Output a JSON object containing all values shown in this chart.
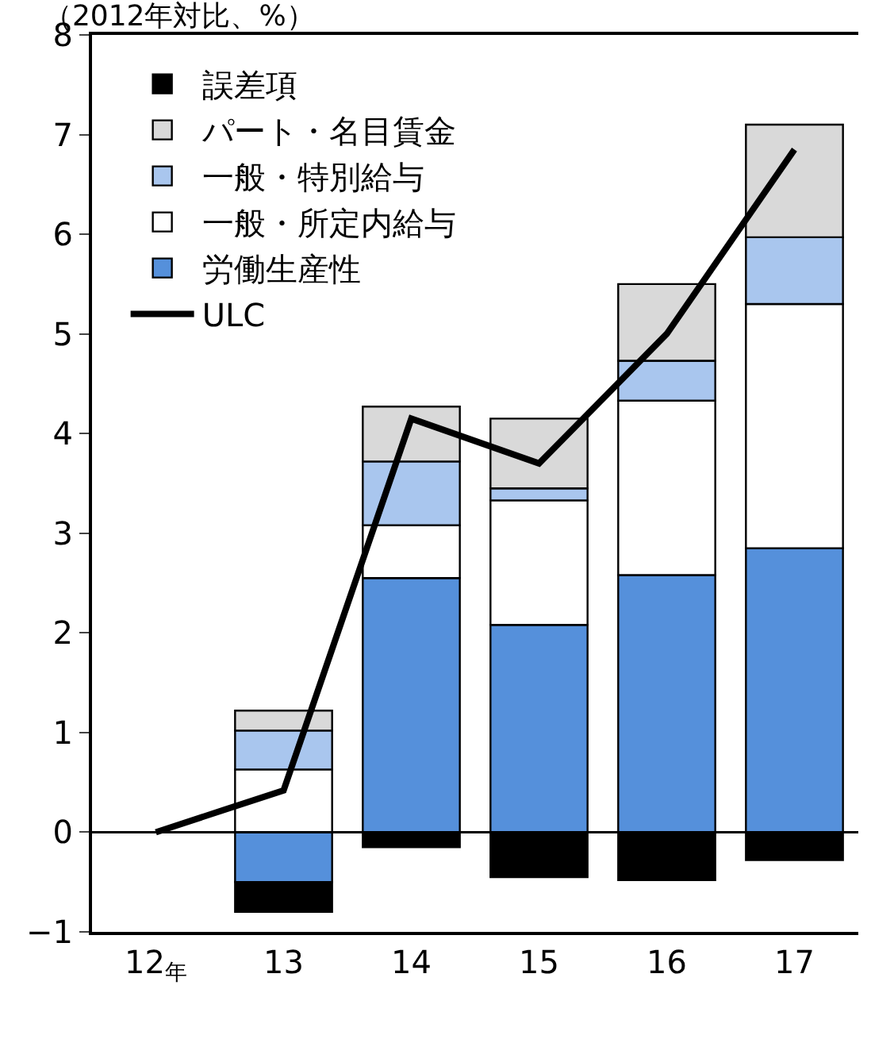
{
  "chart_data": {
    "type": "bar",
    "stacked": true,
    "title": "（2012年対比、%）",
    "categories": [
      "12$_{年}$",
      "13",
      "14",
      "15",
      "16",
      "17"
    ],
    "series": [
      {
        "name": "労働生産性",
        "color": "#5590db",
        "values": [
          null,
          -0.5,
          2.55,
          2.08,
          2.58,
          2.85
        ]
      },
      {
        "name": "一般・所定内給与",
        "color": "#ffffff",
        "values": [
          null,
          0.63,
          0.53,
          1.25,
          1.75,
          2.45
        ]
      },
      {
        "name": "一般・特別給与",
        "color": "#a9c6ee",
        "values": [
          null,
          0.39,
          0.64,
          0.12,
          0.4,
          0.67
        ]
      },
      {
        "name": "パート・名目賃金",
        "color": "#d9d9d9",
        "values": [
          null,
          0.2,
          0.55,
          0.7,
          0.77,
          1.13
        ]
      },
      {
        "name": "誤差項",
        "color": "#000000",
        "values": [
          null,
          -0.3,
          -0.15,
          -0.45,
          -0.48,
          -0.28
        ]
      },
      {
        "name": "ULC",
        "type": "line",
        "color": "#000000",
        "values": [
          0,
          0.42,
          4.15,
          3.7,
          5.0,
          6.85
        ]
      }
    ],
    "ylim": [
      -1,
      8
    ],
    "yticks": [
      -1,
      0,
      1,
      2,
      3,
      4,
      5,
      6,
      7,
      8
    ],
    "ref_lines": [
      {
        "axis": "y",
        "value": 0,
        "color": "#000000"
      }
    ],
    "legend": "top left",
    "marker": "none"
  }
}
